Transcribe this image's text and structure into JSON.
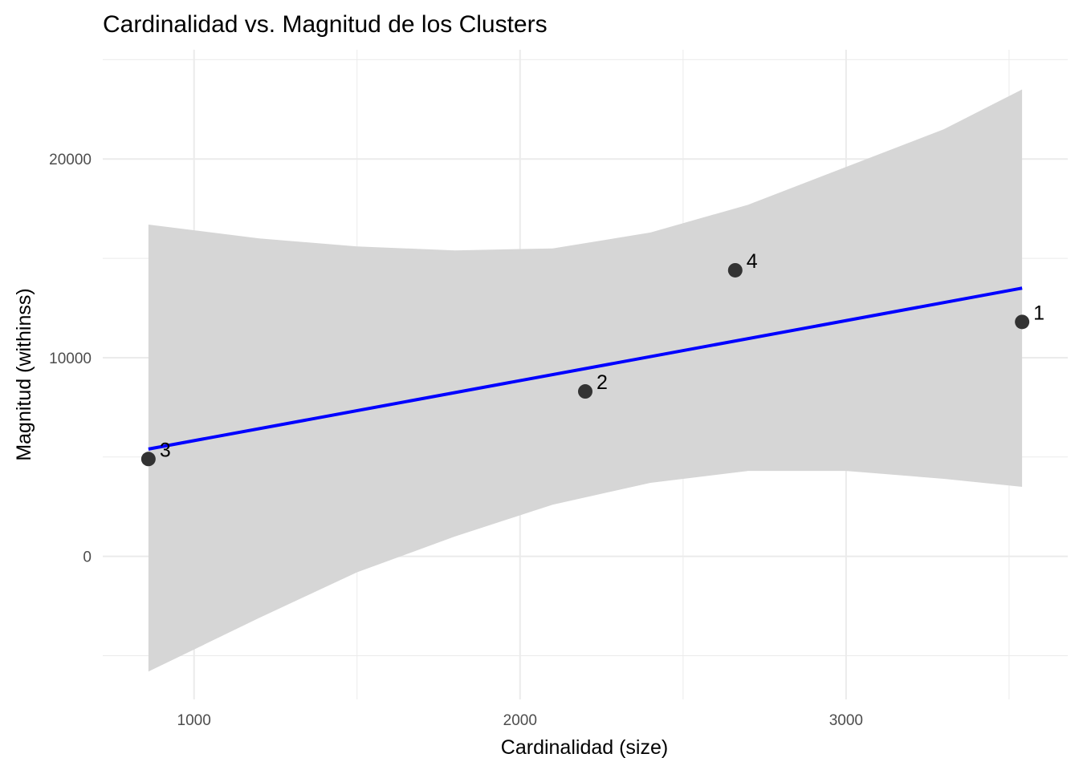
{
  "chart_data": {
    "type": "scatter",
    "title": "Cardinalidad vs. Magnitud de los Clusters",
    "xlabel": "Cardinalidad (size)",
    "ylabel": "Magnitud (withinss)",
    "xlim": [
      720,
      3680
    ],
    "ylim": [
      -7200,
      25500
    ],
    "x_ticks": [
      1000,
      2000,
      3000
    ],
    "y_ticks": [
      0,
      10000,
      20000
    ],
    "x_tick_labels": [
      "1000",
      "2000",
      "3000"
    ],
    "y_tick_labels": [
      "0",
      "10000",
      "20000"
    ],
    "grid": true,
    "points": [
      {
        "label": "1",
        "x": 3540,
        "y": 11800
      },
      {
        "label": "2",
        "x": 2200,
        "y": 8300
      },
      {
        "label": "3",
        "x": 860,
        "y": 4900
      },
      {
        "label": "4",
        "x": 2660,
        "y": 14400
      }
    ],
    "trend_line": {
      "x": [
        860,
        3540
      ],
      "y": [
        5400,
        13500
      ]
    },
    "confidence_band": {
      "x": [
        860,
        1200,
        1500,
        1800,
        2100,
        2400,
        2700,
        3000,
        3300,
        3540
      ],
      "upper": [
        16700,
        16000,
        15600,
        15400,
        15500,
        16300,
        17700,
        19600,
        21500,
        23500
      ],
      "lower": [
        -5800,
        -3100,
        -800,
        1000,
        2600,
        3700,
        4300,
        4300,
        3900,
        3500
      ]
    },
    "colors": {
      "trend_line": "#0000ff",
      "band": "#d6d6d6",
      "points": "#333333",
      "grid": "#ebebeb"
    }
  }
}
